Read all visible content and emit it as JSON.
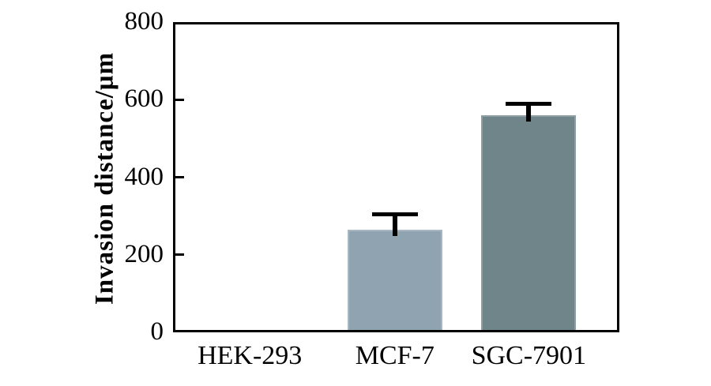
{
  "chart_data": {
    "type": "bar",
    "title": "",
    "categories": [
      "HEK-293",
      "MCF-7",
      "SGC-7901"
    ],
    "values": [
      0,
      265,
      560
    ],
    "errors_plus": [
      0,
      40,
      30
    ],
    "series": [
      {
        "name": "Invasion distance",
        "values": [
          0,
          265,
          560
        ],
        "errors_plus": [
          0,
          40,
          30
        ]
      }
    ],
    "bar_colors": [
      "#90a3b1",
      "#90a3b1",
      "#6f8589"
    ],
    "error_bar_color": "#000000",
    "xlabel": "",
    "ylabel": "Invasion distance/μm",
    "ylim": [
      0,
      800
    ],
    "yticks": [
      0,
      200,
      400,
      600,
      800
    ],
    "grid": false,
    "legend_position": "none",
    "axis_color": "#000000",
    "background_color": "#ffffff"
  }
}
